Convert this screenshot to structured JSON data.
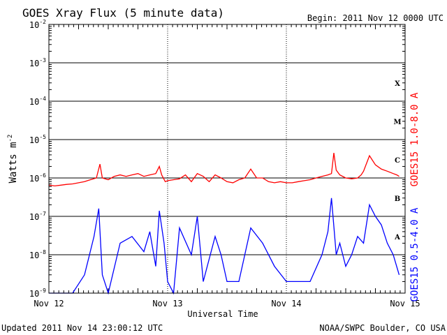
{
  "chart_data": {
    "type": "line",
    "title": "GOES Xray Flux (5 minute data)",
    "begin_label": "Begin:  2011 Nov 12 0000 UTC",
    "ylabel_base": "Watts m",
    "ylabel_exp": "-2",
    "xlabel": "Universal Time",
    "y_scale": "log",
    "ylim": [
      1e-09,
      0.01
    ],
    "xlim": [
      0,
      3
    ],
    "grid": true,
    "y_ticks": [
      {
        "base": "10",
        "exp": "-9",
        "value": 1e-09
      },
      {
        "base": "10",
        "exp": "-8",
        "value": 1e-08
      },
      {
        "base": "10",
        "exp": "-7",
        "value": 1e-07
      },
      {
        "base": "10",
        "exp": "-6",
        "value": 1e-06
      },
      {
        "base": "10",
        "exp": "-5",
        "value": 1e-05
      },
      {
        "base": "10",
        "exp": "-4",
        "value": 0.0001
      },
      {
        "base": "10",
        "exp": "-3",
        "value": 0.001
      },
      {
        "base": "10",
        "exp": "-2",
        "value": 0.01
      }
    ],
    "x_ticks": [
      {
        "label": "Nov 12",
        "value": 0
      },
      {
        "label": "Nov 13",
        "value": 1
      },
      {
        "label": "Nov 14",
        "value": 2
      },
      {
        "label": "Nov 15",
        "value": 3
      }
    ],
    "flare_classes": [
      {
        "label": "A",
        "value": 3e-08
      },
      {
        "label": "B",
        "value": 3e-07
      },
      {
        "label": "C",
        "value": 3e-06
      },
      {
        "label": "M",
        "value": 3e-05
      },
      {
        "label": "X",
        "value": 0.0003
      }
    ],
    "series": [
      {
        "name": "GOES15 1.0-8.0 A",
        "color": "#ff0000",
        "x": [
          0,
          0.05,
          0.1,
          0.15,
          0.2,
          0.25,
          0.3,
          0.35,
          0.4,
          0.43,
          0.45,
          0.5,
          0.55,
          0.6,
          0.65,
          0.7,
          0.75,
          0.8,
          0.85,
          0.9,
          0.93,
          0.95,
          0.98,
          1.0,
          1.05,
          1.1,
          1.15,
          1.2,
          1.25,
          1.3,
          1.35,
          1.4,
          1.45,
          1.5,
          1.55,
          1.6,
          1.65,
          1.7,
          1.75,
          1.8,
          1.85,
          1.9,
          1.95,
          2.0,
          2.05,
          2.1,
          2.15,
          2.2,
          2.25,
          2.3,
          2.35,
          2.38,
          2.4,
          2.42,
          2.45,
          2.5,
          2.55,
          2.6,
          2.63,
          2.65,
          2.7,
          2.75,
          2.8,
          2.85,
          2.9,
          2.93,
          2.95
        ],
        "values": [
          6.5e-07,
          6.2e-07,
          6.5e-07,
          6.8e-07,
          7e-07,
          7.5e-07,
          8e-07,
          9e-07,
          1e-06,
          2.3e-06,
          1e-06,
          9e-07,
          1.1e-06,
          1.2e-06,
          1.1e-06,
          1.2e-06,
          1.3e-06,
          1.1e-06,
          1.2e-06,
          1.3e-06,
          2e-06,
          1.2e-06,
          8e-07,
          8.5e-07,
          9e-07,
          9.5e-07,
          1.2e-06,
          8e-07,
          1.3e-06,
          1.1e-06,
          8e-07,
          1.2e-06,
          1e-06,
          8e-07,
          7.5e-07,
          9e-07,
          1e-06,
          1.7e-06,
          1e-06,
          1e-06,
          8e-07,
          7.5e-07,
          8e-07,
          7.5e-07,
          7.5e-07,
          8e-07,
          8.5e-07,
          9e-07,
          1e-06,
          1.1e-06,
          1.2e-06,
          1.3e-06,
          4.5e-06,
          1.6e-06,
          1.2e-06,
          1e-06,
          9.5e-07,
          1e-06,
          1.2e-06,
          1.5e-06,
          3.8e-06,
          2.2e-06,
          1.7e-06,
          1.5e-06,
          1.3e-06,
          1.2e-06,
          1.1e-06
        ]
      },
      {
        "name": "GOES15 0.5-4.0 A",
        "color": "#0000ff",
        "x": [
          0,
          0.1,
          0.2,
          0.3,
          0.38,
          0.42,
          0.45,
          0.5,
          0.6,
          0.7,
          0.8,
          0.85,
          0.9,
          0.93,
          0.97,
          1.0,
          1.05,
          1.1,
          1.2,
          1.25,
          1.3,
          1.4,
          1.45,
          1.5,
          1.6,
          1.7,
          1.8,
          1.9,
          2.0,
          2.1,
          2.2,
          2.3,
          2.35,
          2.38,
          2.42,
          2.45,
          2.5,
          2.55,
          2.6,
          2.65,
          2.7,
          2.75,
          2.8,
          2.85,
          2.9,
          2.95
        ],
        "values": [
          1e-09,
          1e-09,
          1e-09,
          3e-09,
          3e-08,
          1.6e-07,
          3e-09,
          1e-09,
          2e-08,
          3e-08,
          1.2e-08,
          4e-08,
          5e-09,
          1.4e-07,
          2e-08,
          2e-09,
          1e-09,
          5e-08,
          1e-08,
          1e-07,
          2e-09,
          3e-08,
          1e-08,
          2e-09,
          2e-09,
          5e-08,
          2e-08,
          5e-09,
          2e-09,
          2e-09,
          2e-09,
          1e-08,
          4e-08,
          3e-07,
          1e-08,
          2e-08,
          5e-09,
          1e-08,
          3e-08,
          2e-08,
          2e-07,
          1e-07,
          6e-08,
          2e-08,
          1e-08,
          3e-09
        ]
      }
    ]
  },
  "footer": {
    "updated": "Updated 2011 Nov 14 23:00:12 UTC",
    "credit": "NOAA/SWPC Boulder, CO USA"
  }
}
